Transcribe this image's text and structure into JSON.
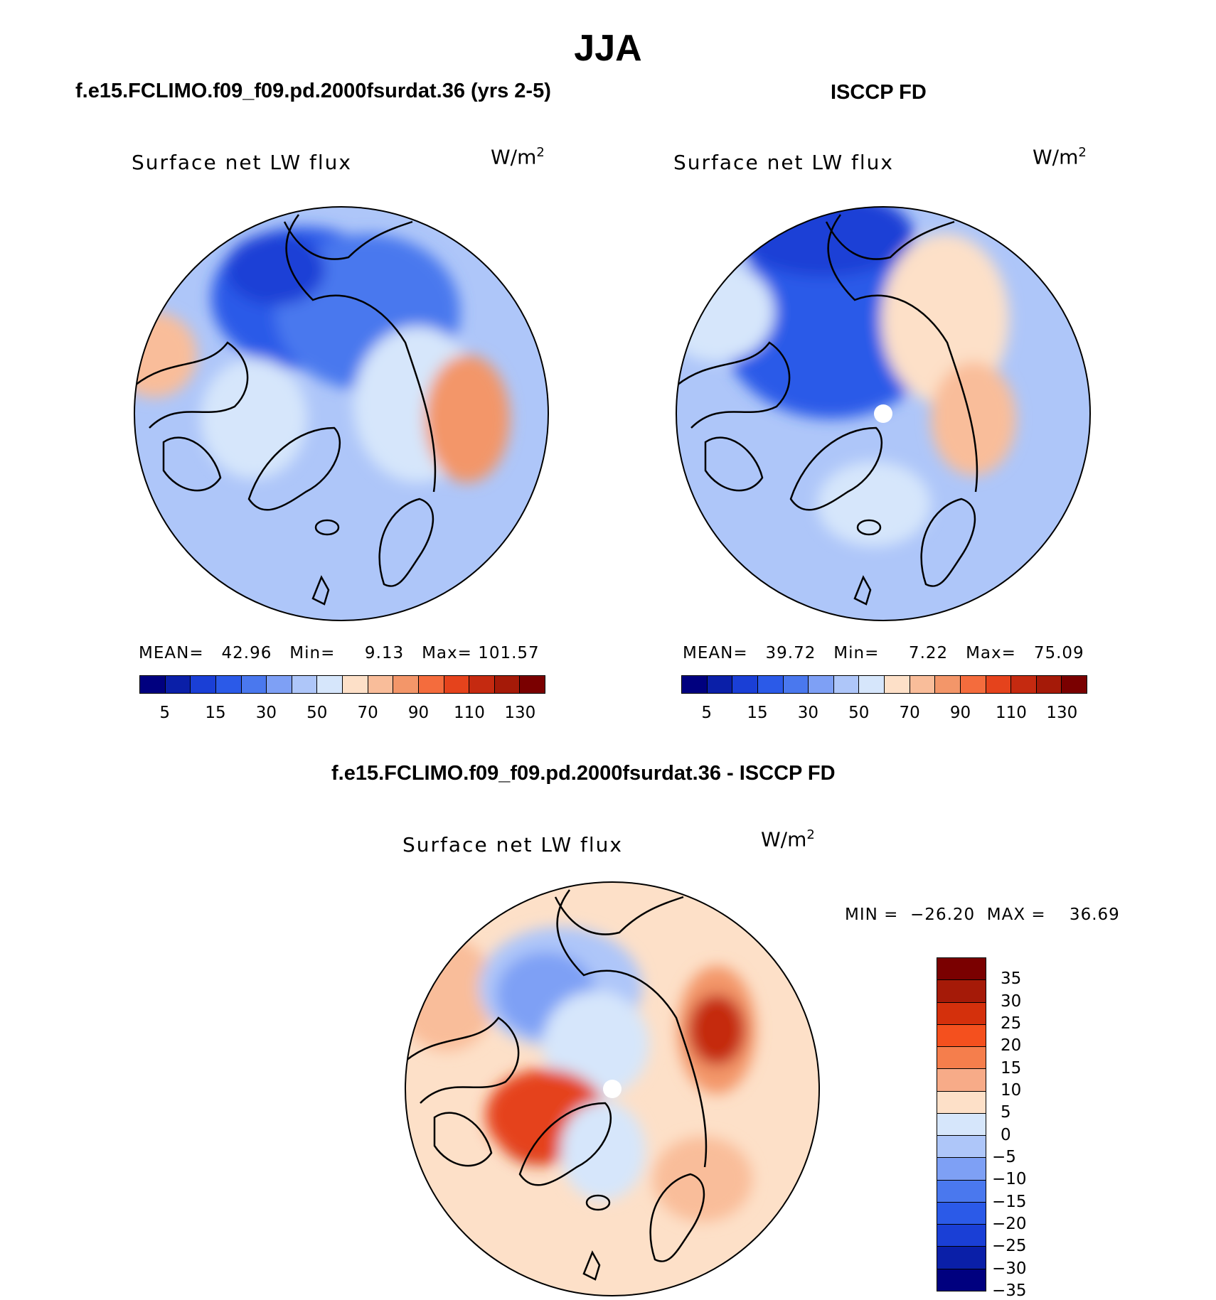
{
  "title": "JJA",
  "panels": [
    {
      "header": "f.e15.FCLIMO.f09_f09.pd.2000fsurdat.36 (yrs 2-5)",
      "variable": "Surface net LW flux",
      "units_base": "W/m",
      "units_exp": "2",
      "stats": "MEAN=   42.96   Min=     9.13   Max= 101.57",
      "colorbar_ticks": [
        "5",
        "15",
        "30",
        "50",
        "70",
        "90",
        "110",
        "130"
      ]
    },
    {
      "header": "ISCCP FD",
      "variable": "Surface net LW flux",
      "units_base": "W/m",
      "units_exp": "2",
      "stats": "MEAN=   39.72   Min=     7.22   Max=   75.09",
      "colorbar_ticks": [
        "5",
        "15",
        "30",
        "50",
        "70",
        "90",
        "110",
        "130"
      ]
    },
    {
      "header": "f.e15.FCLIMO.f09_f09.pd.2000fsurdat.36 - ISCCP FD",
      "variable": "Surface net LW flux",
      "units_base": "W/m",
      "units_exp": "2",
      "stats": "MIN =  −26.20  MAX =    36.69",
      "colorbar_ticks": [
        "35",
        "30",
        "25",
        "20",
        "15",
        "10",
        "5",
        "0",
        "−5",
        "−10",
        "−15",
        "−20",
        "−25",
        "−30",
        "−35"
      ]
    }
  ],
  "colors": {
    "abs_scale": [
      "#00007f",
      "#0a1fa8",
      "#1a3fd6",
      "#2b5ae8",
      "#4a78ee",
      "#7ea0f5",
      "#aec6f9",
      "#d6e6fb",
      "#fde0c8",
      "#f9bd9a",
      "#f39669",
      "#f46c3d",
      "#e5431c",
      "#c52a10",
      "#a51a08",
      "#7a0000"
    ],
    "diff_scale": [
      "#7a0000",
      "#a51a08",
      "#d4300c",
      "#f4501e",
      "#f57e4c",
      "#f7ab88",
      "#fde0c8",
      "#d6e6fb",
      "#aec6f9",
      "#7ea0f5",
      "#4a78ee",
      "#2b5ae8",
      "#1a3fd6",
      "#0a1fa8",
      "#00007f"
    ]
  },
  "map_fields": {
    "model": {
      "base": "#aec6f9",
      "blobs": [
        [
          "#2b5ae8",
          240,
          130,
          200,
          140
        ],
        [
          "#4a78ee",
          330,
          150,
          200,
          160
        ],
        [
          "#d6e6fb",
          400,
          280,
          120,
          160
        ],
        [
          "#f39669",
          470,
          300,
          60,
          120
        ],
        [
          "#f9bd9a",
          30,
          210,
          60,
          60
        ],
        [
          "#1a3fd6",
          200,
          90,
          80,
          40
        ],
        [
          "#d6e6fb",
          170,
          300,
          90,
          110
        ]
      ]
    },
    "obs": {
      "base": "#aec6f9",
      "blobs": [
        [
          "#2b5ae8",
          220,
          170,
          250,
          200
        ],
        [
          "#1a3fd6",
          210,
          40,
          190,
          60
        ],
        [
          "#fde0c8",
          380,
          160,
          120,
          180
        ],
        [
          "#f9bd9a",
          420,
          300,
          60,
          100
        ],
        [
          "#d6e6fb",
          60,
          150,
          100,
          80
        ],
        [
          "#d6e6fb",
          280,
          420,
          100,
          60
        ]
      ]
    },
    "diff": {
      "base": "#fde0c8",
      "blobs": [
        [
          "#f9bd9a",
          60,
          160,
          80,
          100
        ],
        [
          "#aec6f9",
          220,
          150,
          170,
          110
        ],
        [
          "#7ea0f5",
          200,
          160,
          80,
          60
        ],
        [
          "#d6e6fb",
          270,
          230,
          90,
          90
        ],
        [
          "#c52a10",
          190,
          340,
          70,
          60
        ],
        [
          "#e5431c",
          200,
          330,
          110,
          70
        ],
        [
          "#f39669",
          440,
          210,
          50,
          120
        ],
        [
          "#c52a10",
          440,
          210,
          20,
          40
        ],
        [
          "#d6e6fb",
          280,
          380,
          60,
          80
        ],
        [
          "#f9bd9a",
          420,
          420,
          80,
          60
        ]
      ]
    }
  }
}
